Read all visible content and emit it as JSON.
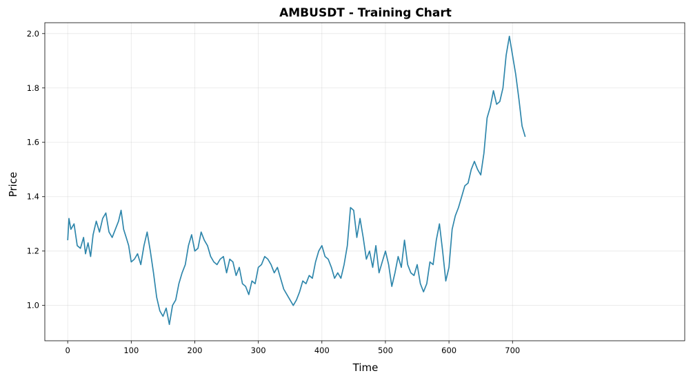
{
  "chart_data": {
    "type": "line",
    "title": "AMBUSDT - Training Chart",
    "xlabel": "Time",
    "ylabel": "Price",
    "xlim": [
      -36,
      971
    ],
    "ylim": [
      0.87,
      2.04
    ],
    "xticks": [
      0,
      100,
      200,
      300,
      400,
      500,
      600,
      700
    ],
    "yticks": [
      1.0,
      1.2,
      1.4,
      1.6,
      1.8,
      2.0
    ],
    "xtick_labels": [
      "0",
      "100",
      "200",
      "300",
      "400",
      "500",
      "600",
      "700"
    ],
    "ytick_labels": [
      "1.0",
      "1.2",
      "1.4",
      "1.6",
      "1.8",
      "2.0"
    ],
    "grid": true,
    "line_color": "#2e86ab",
    "series": [
      {
        "x": [
          0,
          2,
          5,
          10,
          15,
          20,
          25,
          28,
          32,
          36,
          40,
          45,
          50,
          55,
          60,
          65,
          70,
          75,
          80,
          84,
          88,
          92,
          96,
          100,
          105,
          110,
          115,
          120,
          125,
          130,
          135,
          140,
          145,
          150,
          155,
          160,
          165,
          170,
          175,
          180,
          185,
          190,
          195,
          200,
          205,
          210,
          215,
          220,
          225,
          230,
          235,
          240,
          245,
          250,
          255,
          260,
          265,
          270,
          275,
          280,
          285,
          290,
          295,
          300,
          305,
          310,
          315,
          320,
          325,
          330,
          335,
          340,
          345,
          350,
          355,
          360,
          365,
          370,
          375,
          380,
          385,
          390,
          395,
          400,
          405,
          410,
          415,
          420,
          425,
          430,
          435,
          440,
          445,
          450,
          455,
          460,
          465,
          470,
          475,
          480,
          485,
          490,
          495,
          500,
          505,
          510,
          515,
          520,
          525,
          530,
          535,
          540,
          545,
          550,
          555,
          560,
          565,
          570,
          575,
          580,
          585,
          590,
          595,
          600,
          605,
          610,
          615,
          620,
          625,
          630,
          635,
          640,
          645,
          650,
          655,
          660,
          665,
          670,
          675,
          680,
          685,
          690,
          695,
          700,
          705,
          710,
          715,
          720
        ],
        "y": [
          1.24,
          1.32,
          1.28,
          1.3,
          1.22,
          1.21,
          1.25,
          1.19,
          1.23,
          1.18,
          1.26,
          1.31,
          1.27,
          1.32,
          1.34,
          1.27,
          1.25,
          1.28,
          1.31,
          1.35,
          1.28,
          1.25,
          1.22,
          1.16,
          1.17,
          1.19,
          1.15,
          1.22,
          1.27,
          1.2,
          1.12,
          1.03,
          0.98,
          0.96,
          0.99,
          0.93,
          1.0,
          1.02,
          1.08,
          1.12,
          1.15,
          1.22,
          1.26,
          1.2,
          1.21,
          1.27,
          1.24,
          1.22,
          1.18,
          1.16,
          1.15,
          1.17,
          1.18,
          1.12,
          1.17,
          1.16,
          1.11,
          1.14,
          1.08,
          1.07,
          1.04,
          1.09,
          1.08,
          1.14,
          1.15,
          1.18,
          1.17,
          1.15,
          1.12,
          1.14,
          1.1,
          1.06,
          1.04,
          1.02,
          1.0,
          1.02,
          1.05,
          1.09,
          1.08,
          1.11,
          1.1,
          1.16,
          1.2,
          1.22,
          1.18,
          1.17,
          1.14,
          1.1,
          1.12,
          1.1,
          1.15,
          1.22,
          1.36,
          1.35,
          1.25,
          1.32,
          1.25,
          1.17,
          1.2,
          1.14,
          1.22,
          1.12,
          1.16,
          1.2,
          1.15,
          1.07,
          1.12,
          1.18,
          1.14,
          1.24,
          1.15,
          1.12,
          1.11,
          1.15,
          1.08,
          1.05,
          1.08,
          1.16,
          1.15,
          1.24,
          1.3,
          1.2,
          1.09,
          1.14,
          1.28,
          1.33,
          1.36,
          1.4,
          1.44,
          1.45,
          1.5,
          1.53,
          1.5,
          1.48,
          1.56,
          1.69,
          1.73,
          1.79,
          1.74,
          1.75,
          1.8,
          1.92,
          1.99,
          1.92,
          1.85,
          1.76,
          1.66,
          1.62
        ]
      }
    ]
  }
}
